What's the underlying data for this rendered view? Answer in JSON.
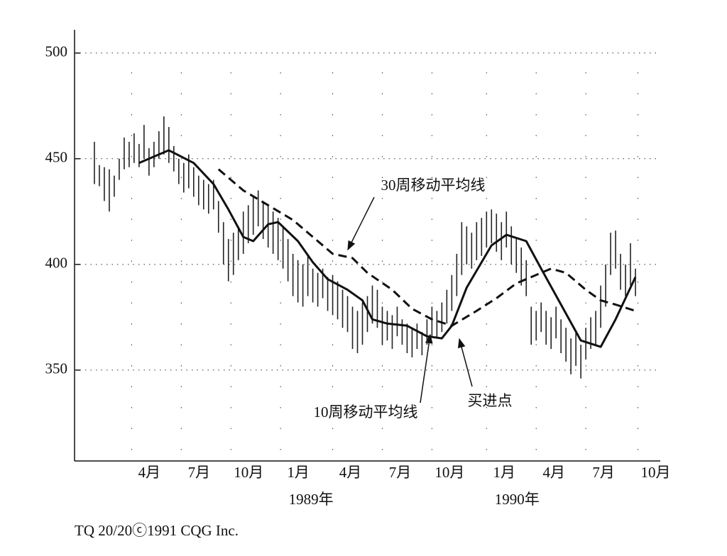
{
  "chart_data": {
    "type": "hilo",
    "xlim": [
      0,
      118
    ],
    "ylim": [
      307,
      511
    ],
    "yticks": [
      350,
      400,
      450,
      500
    ],
    "xticks": [
      {
        "value": 11.5,
        "label": "4月"
      },
      {
        "value": 21.5,
        "label": "7月"
      },
      {
        "value": 31.5,
        "label": "10月"
      },
      {
        "value": 41.5,
        "label": "1月"
      },
      {
        "value": 52,
        "label": "4月"
      },
      {
        "value": 62,
        "label": "7月"
      },
      {
        "value": 72,
        "label": "10月"
      },
      {
        "value": 83,
        "label": "1月"
      },
      {
        "value": 93,
        "label": "4月"
      },
      {
        "value": 103,
        "label": "7月"
      },
      {
        "value": 113.5,
        "label": "10月"
      }
    ],
    "x_groups": [
      {
        "value": 41.5,
        "label": "1989年"
      },
      {
        "value": 83,
        "label": "1990年"
      }
    ],
    "grid": true,
    "bars": {
      "color": "#222",
      "x": [
        4,
        5,
        6,
        7,
        8,
        9,
        10,
        11,
        12,
        13,
        14,
        15,
        16,
        17,
        18,
        19,
        20,
        21,
        22,
        23,
        24,
        25,
        26,
        27,
        28,
        29,
        30,
        31,
        32,
        33,
        34,
        35,
        36,
        37,
        38,
        39,
        40,
        41,
        42,
        43,
        44,
        45,
        46,
        47,
        48,
        49,
        50,
        51,
        52,
        53,
        54,
        55,
        56,
        57,
        58,
        59,
        60,
        61,
        62,
        63,
        64,
        65,
        66,
        67,
        68,
        69,
        70,
        71,
        72,
        73,
        74,
        75,
        76,
        77,
        78,
        79,
        80,
        81,
        82,
        83,
        84,
        85,
        86,
        87,
        88,
        89,
        90,
        91,
        92,
        93,
        94,
        95,
        96,
        97,
        98,
        99,
        100,
        101,
        102,
        103,
        104,
        105,
        106,
        107,
        108,
        109,
        110,
        111,
        112,
        113
      ],
      "high": [
        458,
        447,
        446,
        445,
        442,
        450,
        460,
        458,
        462,
        457,
        466,
        455,
        458,
        463,
        470,
        465,
        456,
        450,
        448,
        452,
        446,
        442,
        440,
        438,
        440,
        430,
        420,
        412,
        415,
        418,
        425,
        428,
        432,
        435,
        430,
        428,
        425,
        422,
        418,
        412,
        405,
        402,
        400,
        405,
        398,
        396,
        398,
        394,
        395,
        392,
        388,
        385,
        380,
        378,
        382,
        385,
        390,
        388,
        380,
        378,
        376,
        380,
        374,
        372,
        370,
        372,
        368,
        374,
        380,
        378,
        382,
        388,
        395,
        405,
        420,
        418,
        415,
        420,
        422,
        425,
        426,
        424,
        420,
        425,
        418,
        412,
        408,
        402,
        380,
        378,
        382,
        378,
        375,
        380,
        374,
        370,
        365,
        368,
        362,
        370,
        375,
        378,
        390,
        400,
        415,
        416,
        405,
        400,
        410,
        398
      ],
      "low": [
        438,
        437,
        430,
        425,
        432,
        440,
        445,
        446,
        448,
        446,
        450,
        442,
        446,
        450,
        452,
        448,
        444,
        438,
        434,
        436,
        432,
        428,
        426,
        424,
        426,
        415,
        400,
        392,
        395,
        402,
        405,
        410,
        414,
        418,
        412,
        408,
        405,
        402,
        398,
        392,
        385,
        382,
        380,
        385,
        382,
        380,
        384,
        378,
        376,
        374,
        370,
        368,
        360,
        358,
        362,
        368,
        372,
        370,
        362,
        364,
        360,
        366,
        362,
        358,
        356,
        360,
        357,
        362,
        366,
        365,
        368,
        372,
        378,
        385,
        395,
        400,
        398,
        402,
        404,
        408,
        410,
        406,
        402,
        408,
        400,
        396,
        390,
        385,
        362,
        364,
        368,
        362,
        360,
        365,
        358,
        354,
        348,
        352,
        346,
        355,
        360,
        362,
        370,
        380,
        395,
        398,
        388,
        385,
        390,
        385
      ]
    },
    "series": [
      {
        "name": "10周移动平均线",
        "color": "#111",
        "dash": false,
        "x": [
          13,
          19,
          24,
          28,
          31,
          34,
          36,
          39,
          41,
          45,
          48,
          51,
          55,
          58,
          60,
          63,
          67,
          71,
          74,
          76,
          79,
          84,
          87,
          91,
          94,
          98,
          102,
          106,
          109,
          113
        ],
        "values": [
          448,
          454,
          448,
          438,
          426,
          413,
          411,
          419,
          420,
          411,
          401,
          393,
          388,
          383,
          374,
          372,
          371,
          366,
          365,
          371,
          389,
          409,
          414,
          411,
          398,
          381,
          364,
          361,
          374,
          394
        ]
      },
      {
        "name": "30周移动平均线",
        "color": "#111",
        "dash": true,
        "x": [
          29,
          34,
          39,
          44,
          49,
          52,
          56,
          59,
          64,
          68,
          72,
          76,
          81,
          85,
          89,
          94,
          96,
          99,
          103,
          106,
          109,
          113
        ],
        "values": [
          445,
          435,
          428,
          421,
          411,
          405,
          403,
          396,
          388,
          379,
          374,
          371,
          378,
          384,
          391,
          396,
          398,
          396,
          388,
          383,
          381,
          378
        ]
      }
    ],
    "annotation": "买进点",
    "source": "TQ 20/20ⓒ1991 CQG Inc."
  }
}
